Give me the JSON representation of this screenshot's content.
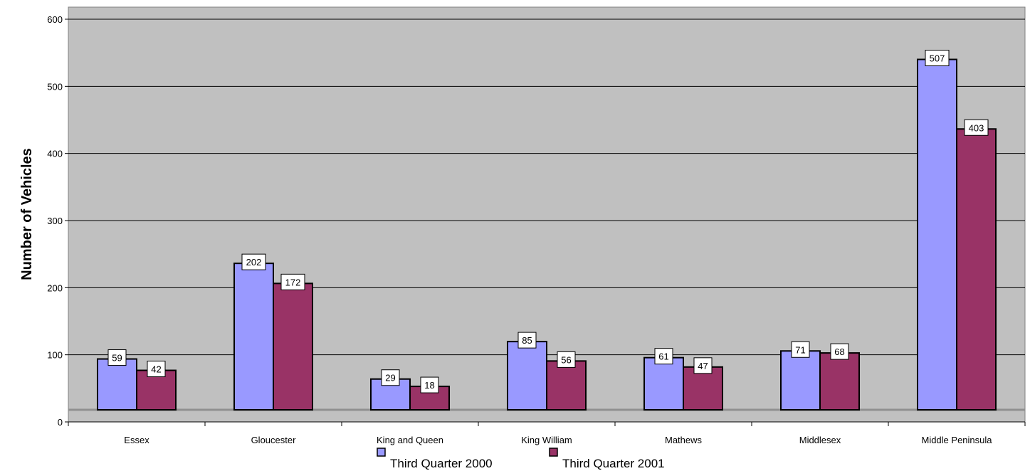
{
  "chart_data": {
    "type": "bar",
    "title": "",
    "xlabel": "",
    "ylabel": "Number of Vehicles",
    "categories": [
      "Essex",
      "Gloucester",
      "King and Queen",
      "King William",
      "Mathews",
      "Middlesex",
      "Middle Peninsula"
    ],
    "series": [
      {
        "name": "Third Quarter 2000",
        "color": "#9999ff",
        "values": [
          59,
          202,
          29,
          85,
          61,
          71,
          507
        ]
      },
      {
        "name": "Third Quarter 2001",
        "color": "#993366",
        "values": [
          42,
          172,
          18,
          56,
          47,
          68,
          403
        ]
      }
    ],
    "ylim": [
      0,
      600
    ],
    "yticks": [
      "0",
      "100",
      "200",
      "300",
      "400",
      "500",
      "600"
    ],
    "grid": true,
    "plot_background": "#c0c0c0",
    "legend_position": "bottom"
  }
}
